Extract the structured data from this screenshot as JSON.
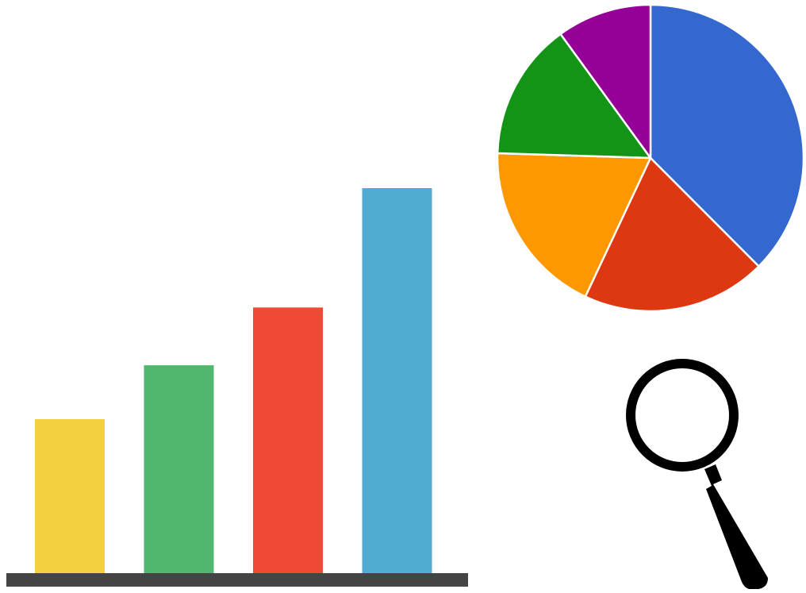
{
  "chart_data": [
    {
      "type": "bar",
      "values": [
        40,
        54,
        69,
        100
      ],
      "colors": [
        "#f2d040",
        "#50b86e",
        "#f04a37",
        "#51acd3"
      ],
      "baseline_color": "#444444",
      "ylim": [
        0,
        100
      ],
      "grid": false,
      "legend": "none"
    },
    {
      "type": "pie",
      "values": [
        37.5,
        19.5,
        18.5,
        14.5,
        10.0
      ],
      "colors": [
        "#3468cf",
        "#dd3812",
        "#fd9800",
        "#149417",
        "#950096"
      ],
      "stroke_color": "#ffffff",
      "legend": "none"
    }
  ],
  "icons": {
    "magnifier": "magnifying-glass-icon",
    "magnifier_color": "#000000"
  }
}
